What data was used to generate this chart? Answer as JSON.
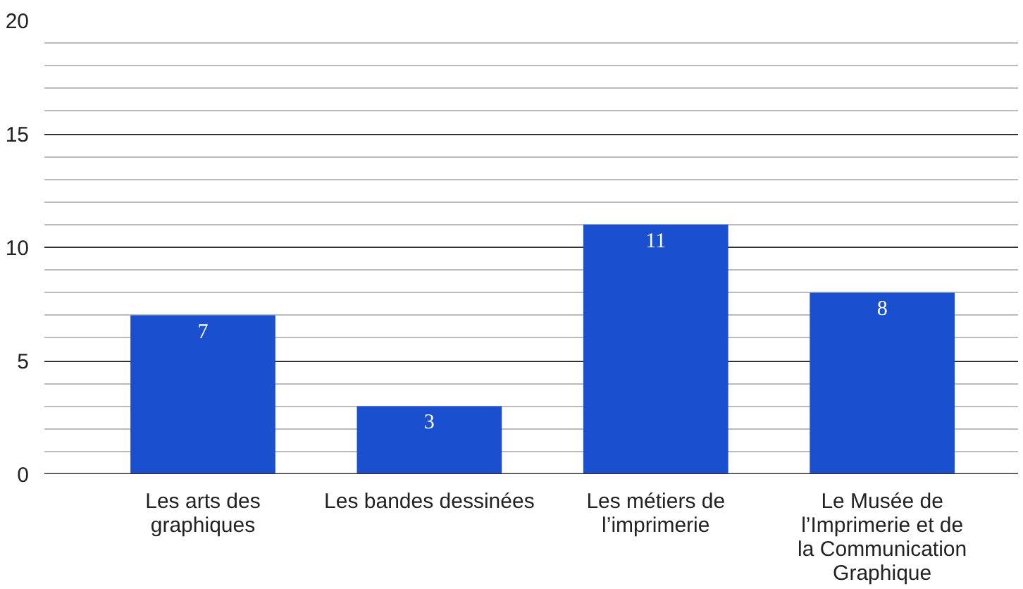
{
  "chart_data": {
    "type": "bar",
    "categories": [
      "Les arts des graphiques",
      "Les bandes dessinées",
      "Les métiers de l’imprimerie",
      "Le Musée de l’Imprimerie et de la Communication Graphique"
    ],
    "values": [
      7,
      3,
      11,
      8
    ],
    "color": "#1a4fd0",
    "ylim": [
      0,
      20
    ],
    "yticks": [
      0,
      5,
      10,
      15,
      20
    ],
    "grid": "y",
    "data_labels": true
  }
}
